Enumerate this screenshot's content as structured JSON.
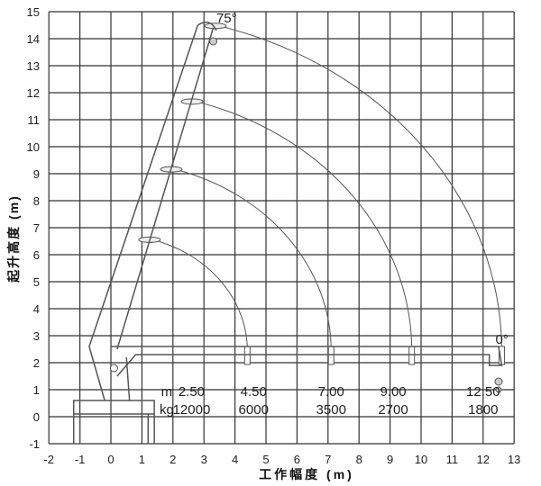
{
  "diagram": {
    "x_axis": {
      "label": "工作幅度 (m)",
      "min": -2,
      "max": 13,
      "ticks": [
        -2,
        -1,
        0,
        1,
        2,
        3,
        4,
        5,
        6,
        7,
        8,
        9,
        10,
        11,
        12,
        13
      ]
    },
    "y_axis": {
      "label": "起升高度 (m)",
      "min": -1,
      "max": 15,
      "ticks": [
        -1,
        0,
        1,
        2,
        3,
        4,
        5,
        6,
        7,
        8,
        9,
        10,
        11,
        12,
        13,
        14,
        15
      ]
    },
    "grid": true,
    "angle_labels": {
      "max": "75°",
      "min": "0°"
    },
    "load_table": {
      "unit_radius": "m",
      "unit_load": "kg",
      "radii": [
        "2.50",
        "4.50",
        "7.00",
        "9.00",
        "12.50"
      ],
      "loads": [
        "12000",
        "6000",
        "3500",
        "2700",
        "1800"
      ]
    },
    "boom_section_radii_m": [
      4.3,
      7.0,
      9.6,
      12.5
    ],
    "line_color": "#555555"
  }
}
